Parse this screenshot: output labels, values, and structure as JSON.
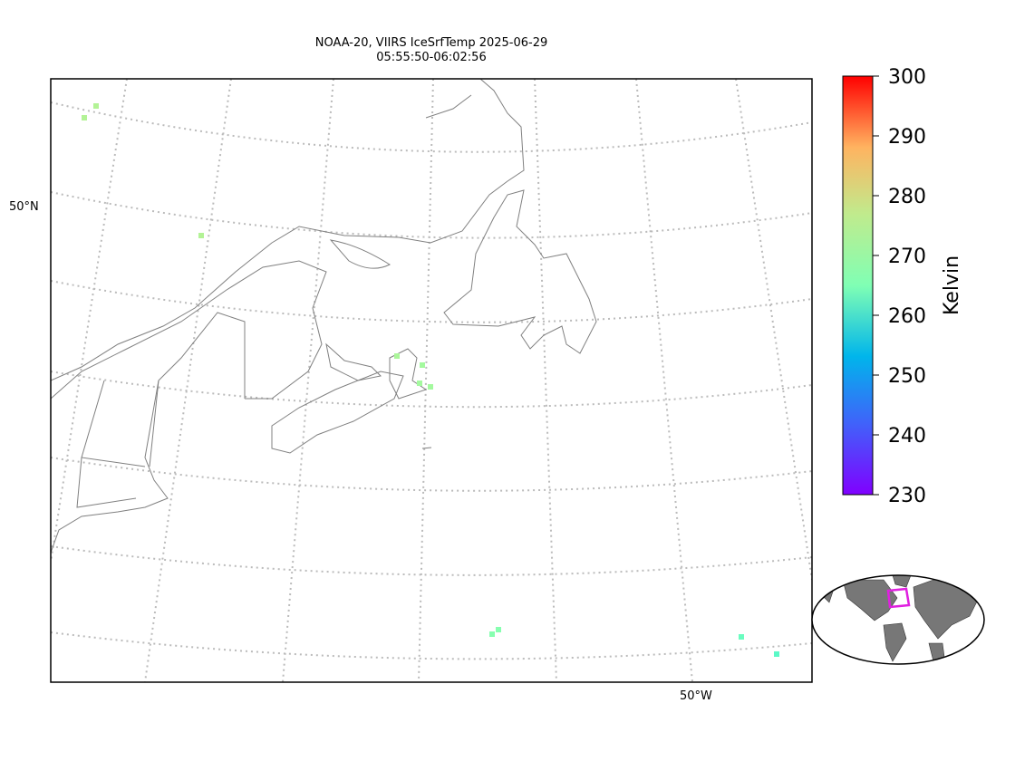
{
  "title": [
    "NOAA-20, VIIRS IceSrfTemp 2025-06-29",
    "05:55:50-06:02:56"
  ],
  "lat_label": "50°N",
  "lon_label": "50°W",
  "colorbar": {
    "label": "Kelvin",
    "lim": [
      230,
      300
    ],
    "ticks": [
      230,
      240,
      250,
      260,
      270,
      280,
      290,
      300
    ]
  },
  "pixels": {
    "values": [
      272,
      272,
      272,
      271,
      270,
      270,
      270,
      266,
      266,
      262,
      260
    ]
  }
}
